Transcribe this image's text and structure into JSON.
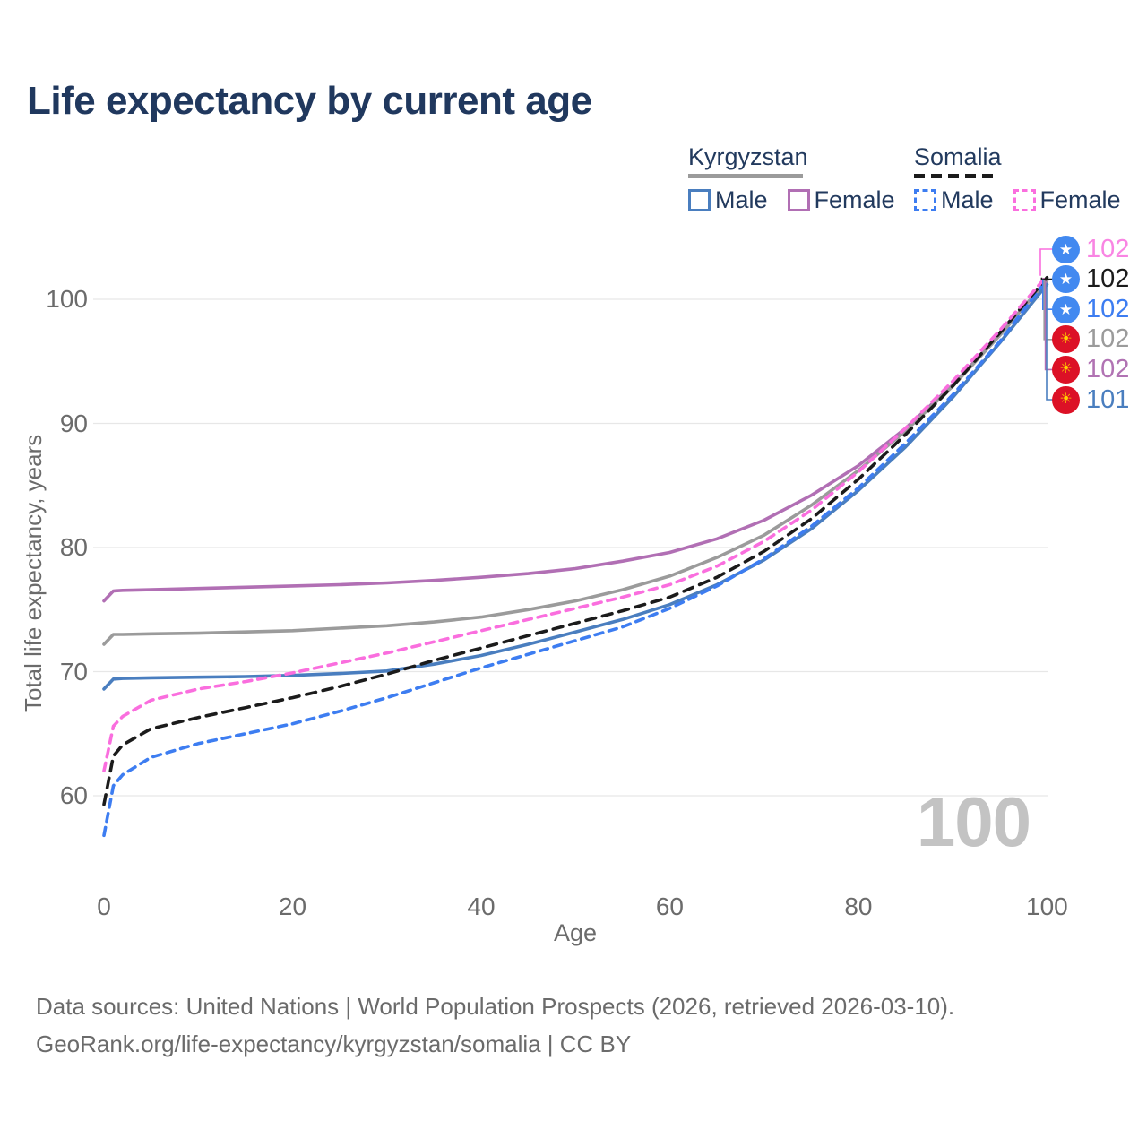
{
  "title": "Life expectancy by current age",
  "watermark": "100",
  "legend": {
    "groups": [
      {
        "country": "Kyrgyzstan",
        "items": [
          {
            "label": "Male",
            "color": "#4a7ebf"
          },
          {
            "label": "Female",
            "color": "#b16fb4"
          }
        ]
      },
      {
        "country": "Somalia",
        "items": [
          {
            "label": "Male",
            "color": "#3d7df1"
          },
          {
            "label": "Female",
            "color": "#fa6ede"
          }
        ]
      }
    ]
  },
  "footer": {
    "line1": "Data sources: United Nations | World Population Prospects (2026, retrieved 2026-03-10).",
    "line2": "GeoRank.org/life-expectancy/kyrgyzstan/somalia | CC BY"
  },
  "flags": {
    "somalia": {
      "glyph": "★",
      "bg": "#4289f0",
      "fg": "#ffffff"
    },
    "kyrgyzstan": {
      "glyph": "☀",
      "bg": "#dc1126",
      "fg": "#ffd100"
    }
  },
  "chart_data": {
    "type": "line",
    "title": "Life expectancy by current age",
    "xlabel": "Age",
    "ylabel": "Total life expectancy, years",
    "xlim": [
      0,
      100
    ],
    "ylim": [
      55,
      104
    ],
    "xticks": [
      0,
      20,
      40,
      60,
      80,
      100
    ],
    "yticks": [
      60,
      70,
      80,
      90,
      100
    ],
    "grid": "horizontal",
    "grid_color": "#e7e7e7",
    "x": [
      0,
      1,
      2,
      5,
      10,
      15,
      20,
      25,
      30,
      35,
      40,
      45,
      50,
      55,
      60,
      65,
      70,
      75,
      80,
      85,
      90,
      95,
      100
    ],
    "series": [
      {
        "key": "kg-female",
        "name": "Kyrgyzstan Female",
        "color": "#b16fb4",
        "dash": "",
        "values": [
          75.7,
          76.5,
          76.55,
          76.6,
          76.7,
          76.8,
          76.9,
          77.0,
          77.15,
          77.35,
          77.6,
          77.9,
          78.3,
          78.9,
          79.6,
          80.7,
          82.2,
          84.2,
          86.6,
          89.6,
          93.1,
          97.2,
          101.5
        ]
      },
      {
        "key": "kg-all",
        "name": "Kyrgyzstan Both sexes",
        "color": "#9b9b9b",
        "dash": "",
        "values": [
          72.2,
          73.0,
          73.0,
          73.05,
          73.1,
          73.2,
          73.3,
          73.5,
          73.7,
          74.0,
          74.4,
          75.0,
          75.7,
          76.6,
          77.7,
          79.2,
          81.0,
          83.4,
          86.2,
          89.4,
          93.0,
          97.1,
          101.55
        ]
      },
      {
        "key": "kg-male",
        "name": "Kyrgyzstan Male",
        "color": "#4a7ebf",
        "dash": "",
        "values": [
          68.6,
          69.4,
          69.45,
          69.5,
          69.55,
          69.6,
          69.7,
          69.85,
          70.05,
          70.6,
          71.3,
          72.2,
          73.2,
          74.2,
          75.4,
          77.0,
          79.0,
          81.5,
          84.6,
          88.1,
          92.1,
          96.5,
          101.2
        ]
      },
      {
        "key": "so-male",
        "name": "Somalia Male",
        "color": "#3d7df1",
        "dash": "9 7",
        "values": [
          56.8,
          60.8,
          61.7,
          63.1,
          64.2,
          65.0,
          65.8,
          66.8,
          67.9,
          69.1,
          70.3,
          71.4,
          72.5,
          73.6,
          75.1,
          76.9,
          79.1,
          81.7,
          84.8,
          88.4,
          92.3,
          96.6,
          101.6
        ]
      },
      {
        "key": "so-all",
        "name": "Somalia Both sexes",
        "color": "#1b1b1b",
        "dash": "11 8",
        "values": [
          59.3,
          63.2,
          64.1,
          65.4,
          66.3,
          67.1,
          67.9,
          68.8,
          69.8,
          70.9,
          71.9,
          72.9,
          73.9,
          74.9,
          76.0,
          77.6,
          79.7,
          82.3,
          85.5,
          89.1,
          93.0,
          97.3,
          101.75
        ]
      },
      {
        "key": "so-female",
        "name": "Somalia Female",
        "color": "#fa6ede",
        "dash": "9 7",
        "values": [
          62.0,
          65.6,
          66.4,
          67.7,
          68.6,
          69.2,
          69.9,
          70.7,
          71.5,
          72.4,
          73.3,
          74.2,
          75.1,
          76.0,
          77.0,
          78.5,
          80.5,
          83.0,
          86.1,
          89.6,
          93.4,
          97.5,
          101.9
        ]
      }
    ],
    "end_labels": [
      {
        "series": "so-female",
        "value": "102",
        "color": "#f985e3",
        "flag": "somalia"
      },
      {
        "series": "so-all",
        "value": "102",
        "color": "#1b1b1b",
        "flag": "somalia"
      },
      {
        "series": "so-male",
        "value": "102",
        "color": "#3d7df1",
        "flag": "somalia"
      },
      {
        "series": "kg-all",
        "value": "102",
        "color": "#9b9b9b",
        "flag": "kyrgyzstan"
      },
      {
        "series": "kg-female",
        "value": "102",
        "color": "#b173b3",
        "flag": "kyrgyzstan"
      },
      {
        "series": "kg-male",
        "value": "101",
        "color": "#4a7ebf",
        "flag": "kyrgyzstan"
      }
    ]
  }
}
